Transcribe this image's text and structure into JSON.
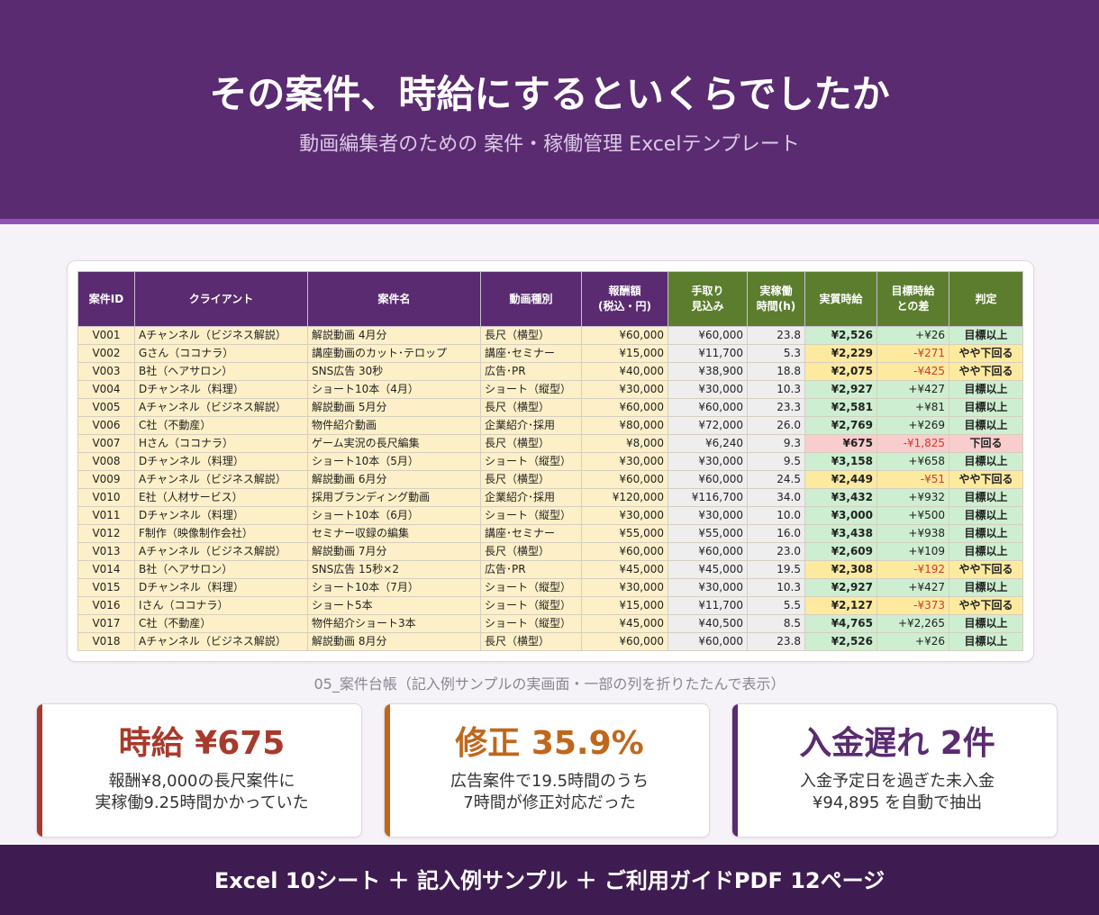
{
  "header": {
    "title": "その案件、時給にするといくらでしたか",
    "subtitle": "動画編集者のための 案件・稼働管理 Excelテンプレート"
  },
  "table": {
    "columns": [
      {
        "key": "id",
        "label": "案件ID"
      },
      {
        "key": "client",
        "label": "クライアント"
      },
      {
        "key": "name",
        "label": "案件名"
      },
      {
        "key": "type",
        "label": "動画種別"
      },
      {
        "key": "reward",
        "label": "報酬額\n(税込・円)"
      },
      {
        "key": "takehome",
        "label": "手取り\n見込み"
      },
      {
        "key": "hours",
        "label": "実稼働\n時間(h)"
      },
      {
        "key": "rate",
        "label": "実質時給"
      },
      {
        "key": "diff",
        "label": "目標時給\nとの差"
      },
      {
        "key": "judge",
        "label": "判定"
      }
    ],
    "rows": [
      {
        "id": "V001",
        "client": "Aチャンネル（ビジネス解説）",
        "name": "解説動画 4月分",
        "type": "長尺（横型）",
        "reward": "¥60,000",
        "takehome": "¥60,000",
        "hours": "23.8",
        "rate": "¥2,526",
        "diff": "+¥26",
        "judge": "目標以上",
        "status": "ok"
      },
      {
        "id": "V002",
        "client": "Gさん（ココナラ）",
        "name": "講座動画のカット･テロップ",
        "type": "講座･セミナー",
        "reward": "¥15,000",
        "takehome": "¥11,700",
        "hours": "5.3",
        "rate": "¥2,229",
        "diff": "-¥271",
        "judge": "やや下回る",
        "status": "mid"
      },
      {
        "id": "V003",
        "client": "B社（ヘアサロン）",
        "name": "SNS広告 30秒",
        "type": "広告･PR",
        "reward": "¥40,000",
        "takehome": "¥38,900",
        "hours": "18.8",
        "rate": "¥2,075",
        "diff": "-¥425",
        "judge": "やや下回る",
        "status": "mid"
      },
      {
        "id": "V004",
        "client": "Dチャンネル（料理）",
        "name": "ショート10本（4月）",
        "type": "ショート（縦型）",
        "reward": "¥30,000",
        "takehome": "¥30,000",
        "hours": "10.3",
        "rate": "¥2,927",
        "diff": "+¥427",
        "judge": "目標以上",
        "status": "ok"
      },
      {
        "id": "V005",
        "client": "Aチャンネル（ビジネス解説）",
        "name": "解説動画 5月分",
        "type": "長尺（横型）",
        "reward": "¥60,000",
        "takehome": "¥60,000",
        "hours": "23.3",
        "rate": "¥2,581",
        "diff": "+¥81",
        "judge": "目標以上",
        "status": "ok"
      },
      {
        "id": "V006",
        "client": "C社（不動産）",
        "name": "物件紹介動画",
        "type": "企業紹介･採用",
        "reward": "¥80,000",
        "takehome": "¥72,000",
        "hours": "26.0",
        "rate": "¥2,769",
        "diff": "+¥269",
        "judge": "目標以上",
        "status": "ok"
      },
      {
        "id": "V007",
        "client": "Hさん（ココナラ）",
        "name": "ゲーム実況の長尺編集",
        "type": "長尺（横型）",
        "reward": "¥8,000",
        "takehome": "¥6,240",
        "hours": "9.3",
        "rate": "¥675",
        "diff": "-¥1,825",
        "judge": "下回る",
        "status": "bad"
      },
      {
        "id": "V008",
        "client": "Dチャンネル（料理）",
        "name": "ショート10本（5月）",
        "type": "ショート（縦型）",
        "reward": "¥30,000",
        "takehome": "¥30,000",
        "hours": "9.5",
        "rate": "¥3,158",
        "diff": "+¥658",
        "judge": "目標以上",
        "status": "ok"
      },
      {
        "id": "V009",
        "client": "Aチャンネル（ビジネス解説）",
        "name": "解説動画 6月分",
        "type": "長尺（横型）",
        "reward": "¥60,000",
        "takehome": "¥60,000",
        "hours": "24.5",
        "rate": "¥2,449",
        "diff": "-¥51",
        "judge": "やや下回る",
        "status": "mid"
      },
      {
        "id": "V010",
        "client": "E社（人材サービス）",
        "name": "採用ブランディング動画",
        "type": "企業紹介･採用",
        "reward": "¥120,000",
        "takehome": "¥116,700",
        "hours": "34.0",
        "rate": "¥3,432",
        "diff": "+¥932",
        "judge": "目標以上",
        "status": "ok"
      },
      {
        "id": "V011",
        "client": "Dチャンネル（料理）",
        "name": "ショート10本（6月）",
        "type": "ショート（縦型）",
        "reward": "¥30,000",
        "takehome": "¥30,000",
        "hours": "10.0",
        "rate": "¥3,000",
        "diff": "+¥500",
        "judge": "目標以上",
        "status": "ok"
      },
      {
        "id": "V012",
        "client": "F制作（映像制作会社）",
        "name": "セミナー収録の編集",
        "type": "講座･セミナー",
        "reward": "¥55,000",
        "takehome": "¥55,000",
        "hours": "16.0",
        "rate": "¥3,438",
        "diff": "+¥938",
        "judge": "目標以上",
        "status": "ok"
      },
      {
        "id": "V013",
        "client": "Aチャンネル（ビジネス解説）",
        "name": "解説動画 7月分",
        "type": "長尺（横型）",
        "reward": "¥60,000",
        "takehome": "¥60,000",
        "hours": "23.0",
        "rate": "¥2,609",
        "diff": "+¥109",
        "judge": "目標以上",
        "status": "ok"
      },
      {
        "id": "V014",
        "client": "B社（ヘアサロン）",
        "name": "SNS広告 15秒×2",
        "type": "広告･PR",
        "reward": "¥45,000",
        "takehome": "¥45,000",
        "hours": "19.5",
        "rate": "¥2,308",
        "diff": "-¥192",
        "judge": "やや下回る",
        "status": "mid"
      },
      {
        "id": "V015",
        "client": "Dチャンネル（料理）",
        "name": "ショート10本（7月）",
        "type": "ショート（縦型）",
        "reward": "¥30,000",
        "takehome": "¥30,000",
        "hours": "10.3",
        "rate": "¥2,927",
        "diff": "+¥427",
        "judge": "目標以上",
        "status": "ok"
      },
      {
        "id": "V016",
        "client": "Iさん（ココナラ）",
        "name": "ショート5本",
        "type": "ショート（縦型）",
        "reward": "¥15,000",
        "takehome": "¥11,700",
        "hours": "5.5",
        "rate": "¥2,127",
        "diff": "-¥373",
        "judge": "やや下回る",
        "status": "mid"
      },
      {
        "id": "V017",
        "client": "C社（不動産）",
        "name": "物件紹介ショート3本",
        "type": "ショート（縦型）",
        "reward": "¥45,000",
        "takehome": "¥40,500",
        "hours": "8.5",
        "rate": "¥4,765",
        "diff": "+¥2,265",
        "judge": "目標以上",
        "status": "ok"
      },
      {
        "id": "V018",
        "client": "Aチャンネル（ビジネス解説）",
        "name": "解説動画 8月分",
        "type": "長尺（横型）",
        "reward": "¥60,000",
        "takehome": "¥60,000",
        "hours": "23.8",
        "rate": "¥2,526",
        "diff": "+¥26",
        "judge": "目標以上",
        "status": "ok"
      }
    ]
  },
  "caption": "05_案件台帳（記入例サンプルの実画面・一部の列を折りたたんで表示）",
  "cards": [
    {
      "headline": "時給 ¥675",
      "line1": "報酬¥8,000の長尺案件に",
      "line2": "実稼働9.25時間かかっていた",
      "accent": "#a73a2c"
    },
    {
      "headline": "修正 35.9%",
      "line1": "広告案件で19.5時間のうち",
      "line2": "7時間が修正対応だった",
      "accent": "#c0671c"
    },
    {
      "headline": "入金遅れ 2件",
      "line1": "入金予定日を過ぎた未入金",
      "line2": "¥94,895 を自動で抽出",
      "accent": "#5a2b70"
    }
  ],
  "footer": "Excel 10シート ＋ 記入例サンプル ＋ ご利用ガイドPDF 12ページ",
  "colors": {
    "header_bg": "#5a2b70",
    "header_green": "#5c7d2e",
    "input_cell": "#fdf0c8",
    "calc_cell": "#eeeeee",
    "status_ok": "#cdeed0",
    "status_mid": "#fdea9f",
    "status_bad": "#f9cccd",
    "footer_bg": "#3e1b50"
  }
}
